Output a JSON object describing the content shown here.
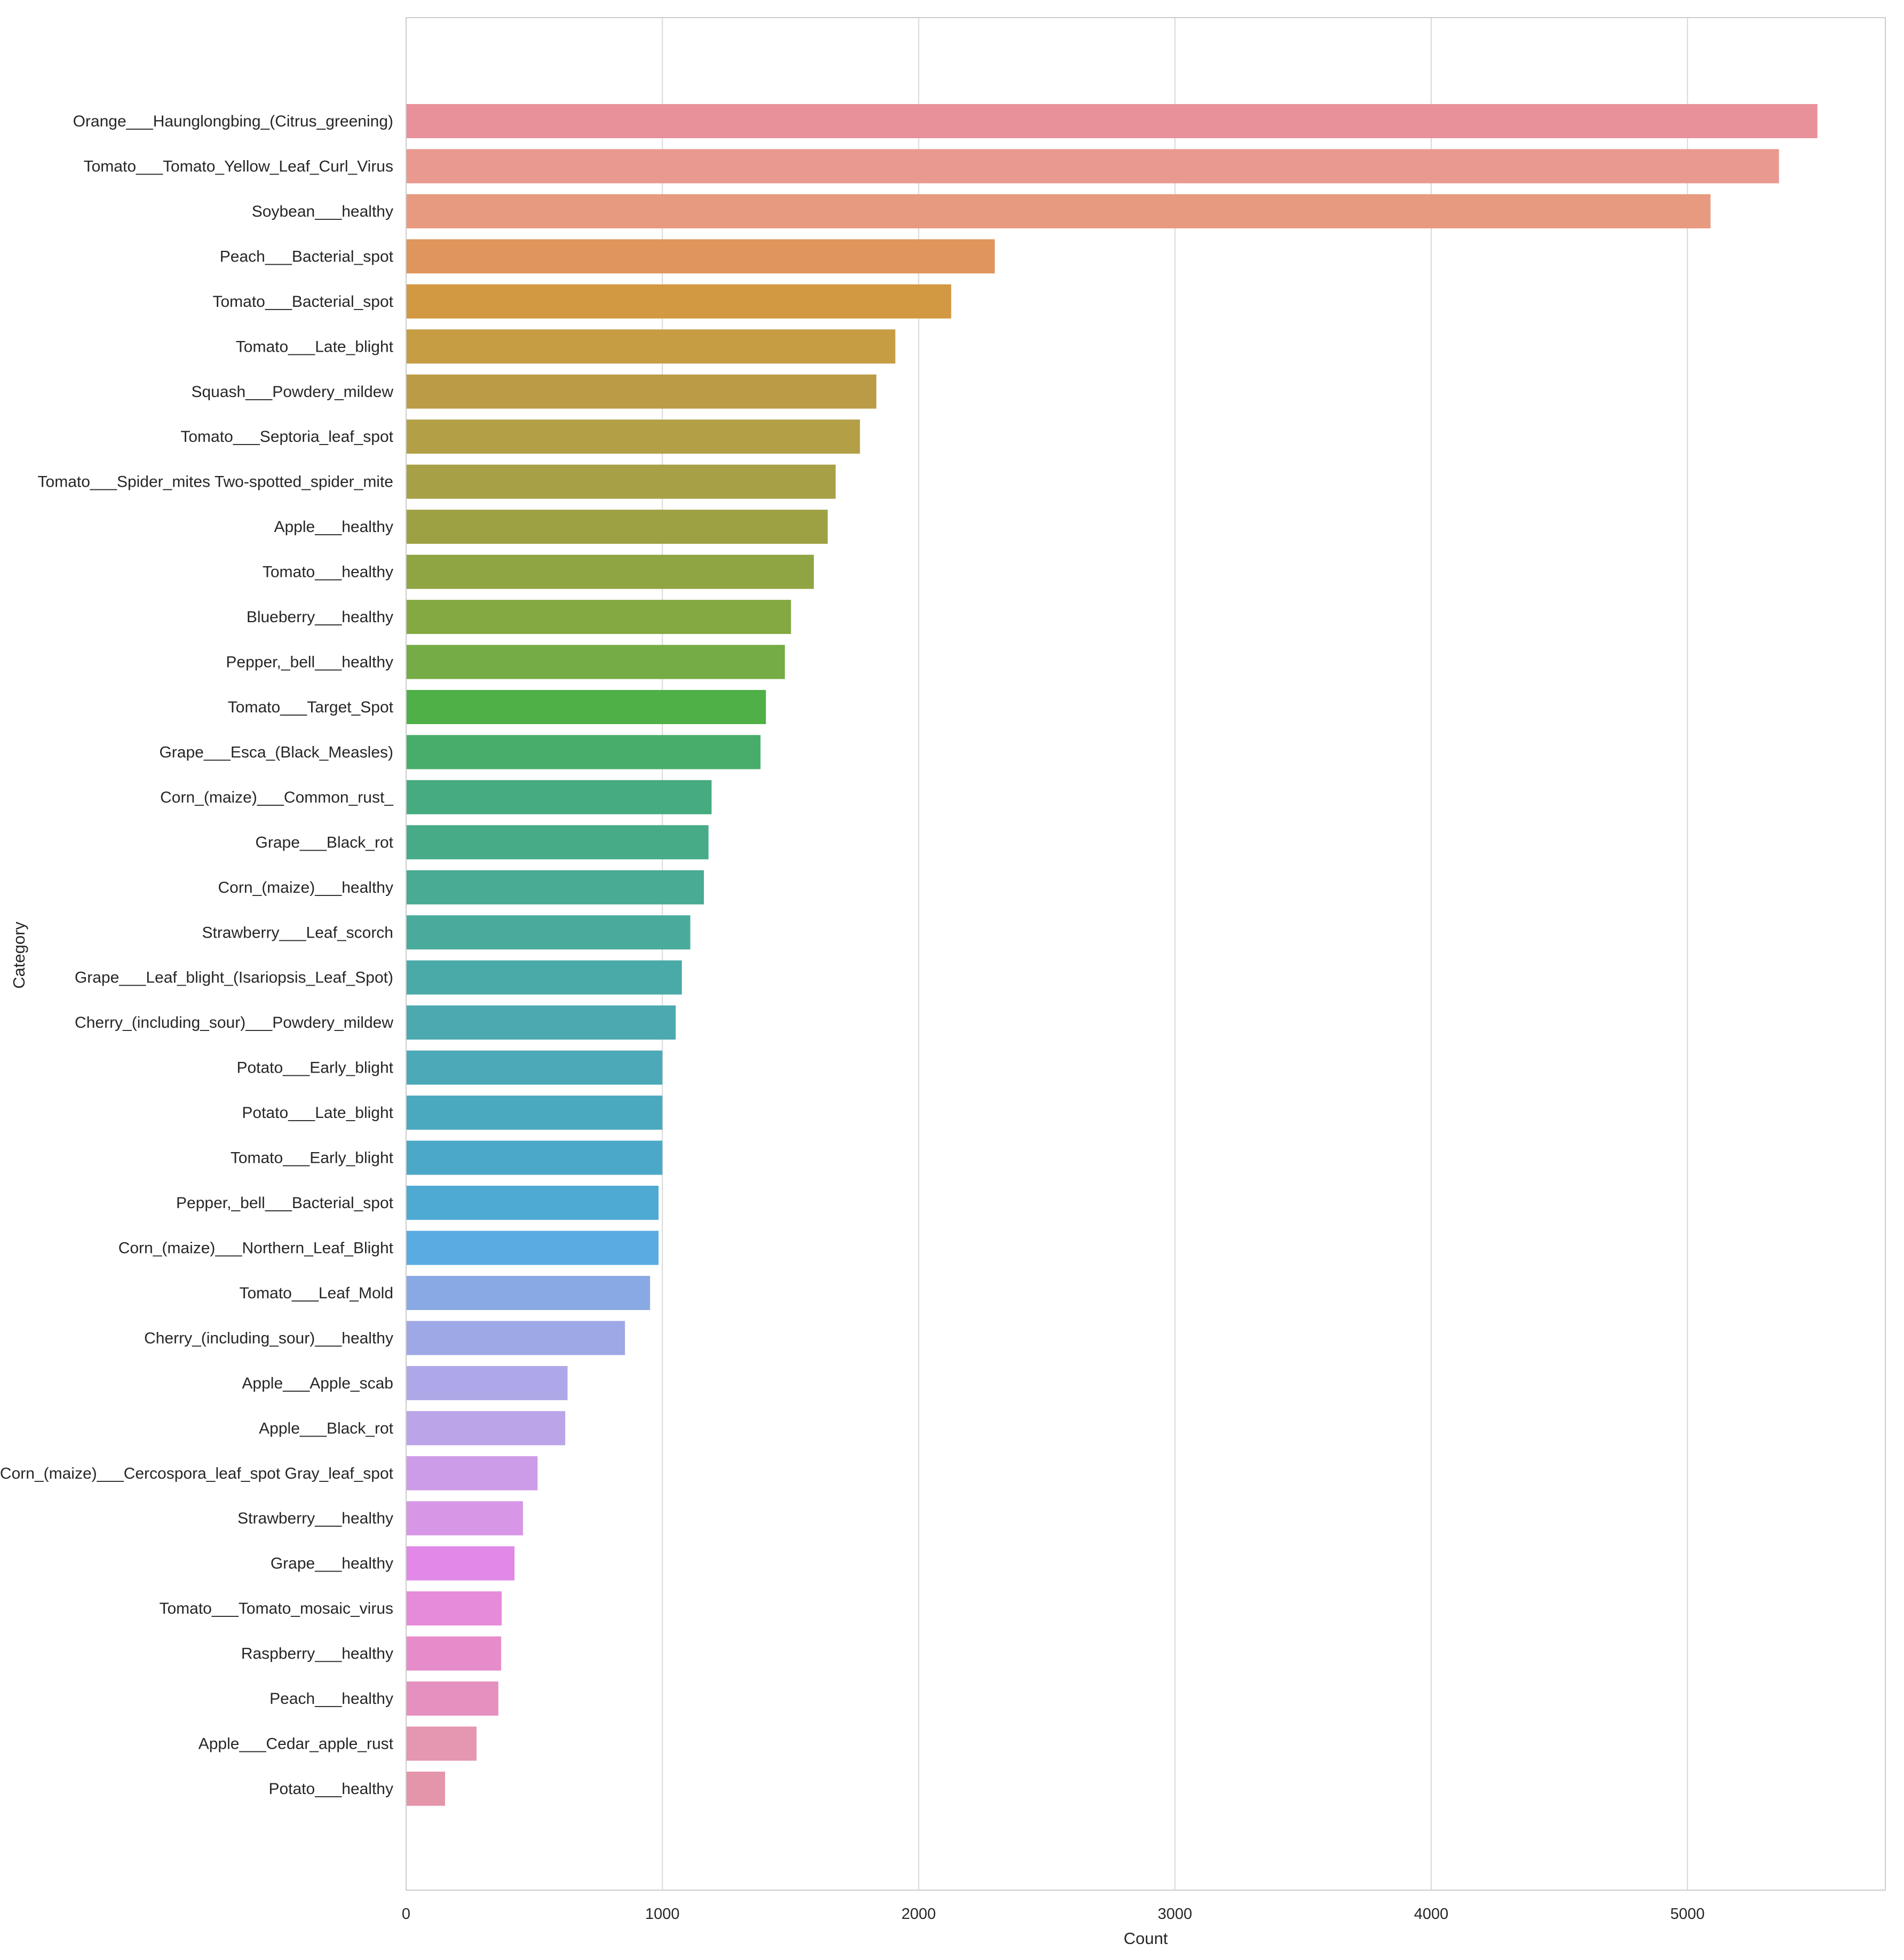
{
  "chart_data": {
    "type": "bar",
    "orientation": "horizontal",
    "xlabel": "Count",
    "ylabel": "Category",
    "xlim": [
      0,
      5770
    ],
    "xticks": [
      0,
      1000,
      2000,
      3000,
      4000,
      5000
    ],
    "grid": "vertical",
    "categories": [
      "Orange___Haunglongbing_(Citrus_greening)",
      "Tomato___Tomato_Yellow_Leaf_Curl_Virus",
      "Soybean___healthy",
      "Peach___Bacterial_spot",
      "Tomato___Bacterial_spot",
      "Tomato___Late_blight",
      "Squash___Powdery_mildew",
      "Tomato___Septoria_leaf_spot",
      "Tomato___Spider_mites Two-spotted_spider_mite",
      "Apple___healthy",
      "Tomato___healthy",
      "Blueberry___healthy",
      "Pepper,_bell___healthy",
      "Tomato___Target_Spot",
      "Grape___Esca_(Black_Measles)",
      "Corn_(maize)___Common_rust_",
      "Grape___Black_rot",
      "Corn_(maize)___healthy",
      "Strawberry___Leaf_scorch",
      "Grape___Leaf_blight_(Isariopsis_Leaf_Spot)",
      "Cherry_(including_sour)___Powdery_mildew",
      "Potato___Early_blight",
      "Potato___Late_blight",
      "Tomato___Early_blight",
      "Pepper,_bell___Bacterial_spot",
      "Corn_(maize)___Northern_Leaf_Blight",
      "Tomato___Leaf_Mold",
      "Cherry_(including_sour)___healthy",
      "Apple___Apple_scab",
      "Apple___Black_rot",
      "Corn_(maize)___Cercospora_leaf_spot Gray_leaf_spot",
      "Strawberry___healthy",
      "Grape___healthy",
      "Tomato___Tomato_mosaic_virus",
      "Raspberry___healthy",
      "Peach___healthy",
      "Apple___Cedar_apple_rust",
      "Potato___healthy"
    ],
    "values": [
      5507,
      5357,
      5090,
      2297,
      2127,
      1909,
      1835,
      1771,
      1676,
      1645,
      1591,
      1502,
      1478,
      1404,
      1383,
      1192,
      1180,
      1162,
      1109,
      1076,
      1052,
      1000,
      1000,
      1000,
      985,
      985,
      952,
      854,
      630,
      621,
      513,
      456,
      423,
      373,
      371,
      360,
      275,
      152
    ],
    "colors": [
      "#e8919b",
      "#e9998f",
      "#e79a7f",
      "#df955b",
      "#d39842",
      "#c69d42",
      "#bb9c46",
      "#b39f46",
      "#a8a046",
      "#9da144",
      "#8fa442",
      "#84a842",
      "#75ac45",
      "#4fb047",
      "#48ac6a",
      "#46ac80",
      "#47ab88",
      "#48ab92",
      "#4aab9c",
      "#4aaaa8",
      "#4ba9af",
      "#4ba9b8",
      "#4ba9bf",
      "#4ba9c7",
      "#4eaad3",
      "#5aabe1",
      "#89a9e4",
      "#9ea8e6",
      "#aea8e8",
      "#bca4e9",
      "#cc9ce8",
      "#d896e6",
      "#e188e9",
      "#e58bd9",
      "#e68ccb",
      "#e690c0",
      "#e596b0",
      "#e595aa"
    ]
  }
}
